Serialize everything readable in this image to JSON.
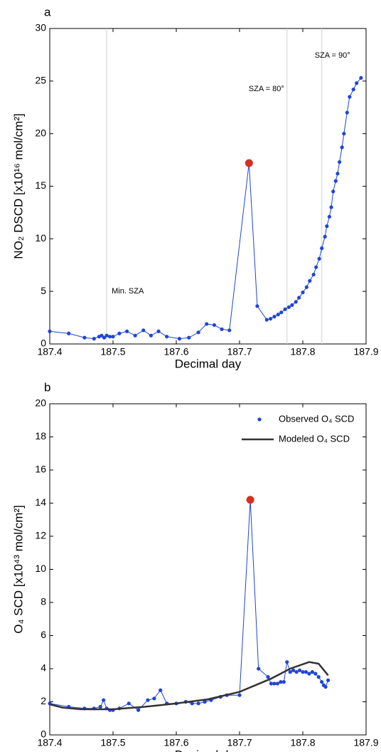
{
  "chart_data": [
    {
      "type": "line",
      "panel_label": "a",
      "xlabel": "Decimal day",
      "ylabel": "NO₂ DSCD [x10¹⁶ mol/cm²]",
      "xlim": [
        187.4,
        187.9
      ],
      "xticks": [
        187.4,
        187.5,
        187.6,
        187.7,
        187.8,
        187.9
      ],
      "ylim": [
        0,
        30
      ],
      "yticks": [
        0,
        5,
        10,
        15,
        20,
        25,
        30
      ],
      "annotations": [
        {
          "text": "Min. SZA",
          "x": 187.49
        },
        {
          "text": "SZA = 80°",
          "x": 187.775
        },
        {
          "text": "SZA = 90°",
          "x": 187.83
        }
      ],
      "highlight": {
        "index": 24,
        "color": "#d7301f"
      },
      "series": [
        {
          "color": "#1f45d6",
          "style": "points-line",
          "x": [
            187.4,
            187.43,
            187.455,
            187.47,
            187.478,
            187.482,
            187.486,
            187.49,
            187.495,
            187.5,
            187.51,
            187.522,
            187.535,
            187.548,
            187.56,
            187.572,
            187.585,
            187.605,
            187.62,
            187.635,
            187.648,
            187.66,
            187.672,
            187.684,
            187.715,
            187.728,
            187.743,
            187.749,
            187.755,
            187.761,
            187.766,
            187.772,
            187.778,
            187.783,
            187.789,
            187.794,
            187.8,
            187.806,
            187.811,
            187.817,
            187.821,
            187.826,
            187.83,
            187.835,
            187.838,
            187.842,
            187.845,
            187.848,
            187.852,
            187.855,
            187.858,
            187.862,
            187.865,
            187.87,
            187.874,
            187.88,
            187.885,
            187.892
          ],
          "values": [
            1.2,
            1.0,
            0.6,
            0.5,
            0.7,
            0.8,
            0.6,
            0.8,
            0.7,
            0.7,
            1.0,
            1.2,
            0.8,
            1.3,
            0.8,
            1.2,
            0.7,
            0.5,
            0.6,
            1.1,
            1.9,
            1.8,
            1.4,
            1.3,
            17.2,
            3.6,
            2.3,
            2.4,
            2.6,
            2.8,
            3.0,
            3.3,
            3.5,
            3.7,
            4.0,
            4.4,
            4.9,
            5.4,
            6.0,
            6.6,
            7.3,
            8.1,
            9.1,
            10.2,
            11.2,
            12.1,
            13.0,
            14.5,
            15.5,
            16.2,
            17.3,
            18.7,
            20.0,
            22.0,
            23.5,
            24.2,
            24.8,
            25.3
          ]
        }
      ]
    },
    {
      "type": "line",
      "panel_label": "b",
      "xlabel": "Decimal day",
      "ylabel": "O₄ SCD [x10⁴³ mol/cm²]",
      "xlim": [
        187.4,
        187.9
      ],
      "xticks": [
        187.4,
        187.5,
        187.6,
        187.7,
        187.8,
        187.9
      ],
      "ylim": [
        0,
        20
      ],
      "yticks": [
        0,
        2,
        4,
        6,
        8,
        10,
        12,
        14,
        16,
        18,
        20
      ],
      "legend": "upper right",
      "highlight": {
        "index": 25,
        "color": "#d7301f"
      },
      "series": [
        {
          "name": "Observed O₄ SCD",
          "color": "#1f45d6",
          "style": "points-line",
          "x": [
            187.4,
            187.43,
            187.455,
            187.47,
            187.48,
            187.485,
            187.49,
            187.495,
            187.5,
            187.51,
            187.525,
            187.54,
            187.555,
            187.565,
            187.575,
            187.585,
            187.6,
            187.615,
            187.625,
            187.635,
            187.645,
            187.655,
            187.67,
            187.68,
            187.7,
            187.717,
            187.73,
            187.745,
            187.75,
            187.755,
            187.76,
            187.765,
            187.77,
            187.775,
            187.78,
            187.785,
            187.79,
            187.795,
            187.8,
            187.805,
            187.81,
            187.815,
            187.82,
            187.825,
            187.83,
            187.833,
            187.836,
            187.84
          ],
          "values": [
            1.9,
            1.7,
            1.6,
            1.6,
            1.7,
            2.1,
            1.6,
            1.5,
            1.5,
            1.6,
            1.9,
            1.5,
            2.1,
            2.2,
            2.7,
            1.9,
            1.9,
            2.0,
            1.9,
            1.9,
            2.0,
            2.1,
            2.3,
            2.4,
            2.4,
            14.2,
            4.0,
            3.5,
            3.1,
            3.1,
            3.1,
            3.2,
            3.2,
            4.4,
            3.8,
            3.9,
            3.8,
            3.9,
            3.8,
            3.8,
            3.7,
            3.8,
            3.7,
            3.5,
            3.2,
            3.0,
            2.9,
            3.3
          ]
        },
        {
          "name": "Modeled O₄ SCD",
          "color": "#333333",
          "style": "line",
          "x": [
            187.4,
            187.42,
            187.45,
            187.5,
            187.55,
            187.6,
            187.65,
            187.7,
            187.75,
            187.78,
            187.81,
            187.825,
            187.84
          ],
          "values": [
            1.85,
            1.65,
            1.55,
            1.55,
            1.7,
            1.9,
            2.15,
            2.6,
            3.4,
            4.0,
            4.4,
            4.3,
            3.6
          ]
        }
      ]
    }
  ]
}
